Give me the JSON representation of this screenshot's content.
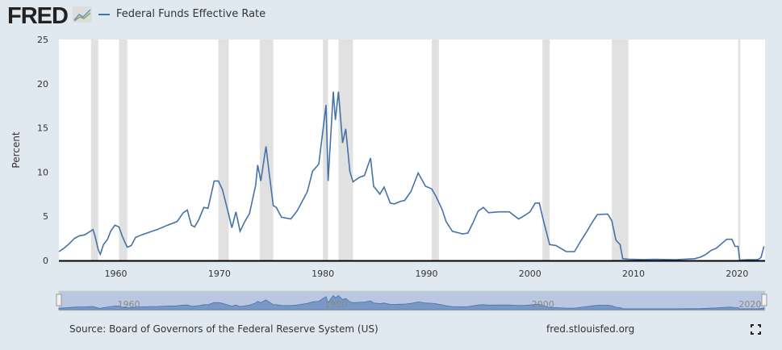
{
  "header": {
    "logo": "FRED",
    "legend_label": "Federal Funds Effective Rate"
  },
  "footer": {
    "source": "Source: Board of Governors of the Federal Reserve System (US)",
    "site": "fred.stlouisfed.org"
  },
  "colors": {
    "series": "#4572a7",
    "recession": "#e1e1e1",
    "background": "#e1e9f0"
  },
  "chart_data": {
    "type": "line",
    "title": "",
    "xlabel": "",
    "ylabel": "Percent",
    "xlim": [
      1954.5,
      2022.7
    ],
    "ylim": [
      0,
      25
    ],
    "yticks": [
      0,
      5,
      10,
      15,
      20,
      25
    ],
    "xticks": [
      "1960",
      "1970",
      "1980",
      "1990",
      "2000",
      "2010",
      "2020"
    ],
    "navigator_ticks": [
      "1960",
      "1980",
      "2000",
      "2020"
    ],
    "grid": false,
    "legend": "top-left",
    "recessions": [
      [
        1957.6,
        1958.3
      ],
      [
        1960.3,
        1961.1
      ],
      [
        1969.9,
        1970.9
      ],
      [
        1973.9,
        1975.2
      ],
      [
        1980.0,
        1980.5
      ],
      [
        1981.5,
        1982.9
      ],
      [
        1990.5,
        1991.2
      ],
      [
        2001.2,
        2001.9
      ],
      [
        2007.9,
        2009.5
      ],
      [
        2020.1,
        2020.3
      ]
    ],
    "series": [
      {
        "name": "Federal Funds Effective Rate",
        "points": [
          [
            1954.5,
            1.0
          ],
          [
            1955,
            1.4
          ],
          [
            1955.5,
            1.9
          ],
          [
            1956,
            2.5
          ],
          [
            1956.5,
            2.8
          ],
          [
            1957,
            2.9
          ],
          [
            1957.8,
            3.5
          ],
          [
            1958.0,
            2.7
          ],
          [
            1958.3,
            1.2
          ],
          [
            1958.5,
            0.7
          ],
          [
            1958.8,
            1.8
          ],
          [
            1959.2,
            2.4
          ],
          [
            1959.5,
            3.3
          ],
          [
            1959.9,
            4.0
          ],
          [
            1960.3,
            3.8
          ],
          [
            1960.6,
            2.8
          ],
          [
            1960.9,
            2.0
          ],
          [
            1961.1,
            1.5
          ],
          [
            1961.5,
            1.7
          ],
          [
            1961.9,
            2.6
          ],
          [
            1962.5,
            2.9
          ],
          [
            1963.5,
            3.3
          ],
          [
            1964,
            3.5
          ],
          [
            1965,
            4.0
          ],
          [
            1965.9,
            4.4
          ],
          [
            1966.5,
            5.4
          ],
          [
            1966.9,
            5.7
          ],
          [
            1967.3,
            4.0
          ],
          [
            1967.6,
            3.8
          ],
          [
            1968,
            4.6
          ],
          [
            1968.5,
            6.0
          ],
          [
            1968.9,
            5.9
          ],
          [
            1969.5,
            9.0
          ],
          [
            1969.9,
            9.0
          ],
          [
            1970.3,
            8.0
          ],
          [
            1970.9,
            5.2
          ],
          [
            1971.2,
            3.7
          ],
          [
            1971.6,
            5.5
          ],
          [
            1972.0,
            3.3
          ],
          [
            1972.5,
            4.5
          ],
          [
            1972.9,
            5.3
          ],
          [
            1973.5,
            8.5
          ],
          [
            1973.7,
            10.8
          ],
          [
            1974.0,
            9.0
          ],
          [
            1974.5,
            12.9
          ],
          [
            1974.8,
            10.0
          ],
          [
            1975.2,
            6.2
          ],
          [
            1975.5,
            6.0
          ],
          [
            1976,
            4.9
          ],
          [
            1976.9,
            4.7
          ],
          [
            1977.5,
            5.6
          ],
          [
            1978.0,
            6.7
          ],
          [
            1978.5,
            7.8
          ],
          [
            1979.0,
            10.1
          ],
          [
            1979.6,
            10.9
          ],
          [
            1979.9,
            13.8
          ],
          [
            1980.3,
            17.6
          ],
          [
            1980.5,
            9.0
          ],
          [
            1980.8,
            15.0
          ],
          [
            1981.0,
            19.1
          ],
          [
            1981.2,
            15.9
          ],
          [
            1981.5,
            19.1
          ],
          [
            1981.9,
            13.3
          ],
          [
            1982.2,
            14.9
          ],
          [
            1982.6,
            10.1
          ],
          [
            1982.9,
            8.9
          ],
          [
            1983.5,
            9.4
          ],
          [
            1984.0,
            9.6
          ],
          [
            1984.6,
            11.6
          ],
          [
            1984.9,
            8.4
          ],
          [
            1985.5,
            7.5
          ],
          [
            1985.9,
            8.3
          ],
          [
            1986.5,
            6.5
          ],
          [
            1986.9,
            6.4
          ],
          [
            1987.5,
            6.7
          ],
          [
            1987.9,
            6.8
          ],
          [
            1988.5,
            7.8
          ],
          [
            1989.2,
            9.9
          ],
          [
            1989.9,
            8.4
          ],
          [
            1990.5,
            8.1
          ],
          [
            1990.9,
            7.3
          ],
          [
            1991.5,
            5.8
          ],
          [
            1991.9,
            4.4
          ],
          [
            1992.5,
            3.3
          ],
          [
            1993.5,
            3.0
          ],
          [
            1994.0,
            3.1
          ],
          [
            1994.5,
            4.3
          ],
          [
            1995.0,
            5.6
          ],
          [
            1995.5,
            6.0
          ],
          [
            1996,
            5.4
          ],
          [
            1997,
            5.5
          ],
          [
            1998,
            5.5
          ],
          [
            1998.9,
            4.7
          ],
          [
            1999.5,
            5.1
          ],
          [
            2000.0,
            5.5
          ],
          [
            2000.5,
            6.5
          ],
          [
            2000.9,
            6.5
          ],
          [
            2001.3,
            4.5
          ],
          [
            2001.9,
            1.8
          ],
          [
            2002.5,
            1.7
          ],
          [
            2003.5,
            1.0
          ],
          [
            2004.3,
            1.0
          ],
          [
            2004.9,
            2.2
          ],
          [
            2005.5,
            3.3
          ],
          [
            2006.0,
            4.3
          ],
          [
            2006.5,
            5.2
          ],
          [
            2007.5,
            5.25
          ],
          [
            2007.9,
            4.5
          ],
          [
            2008.3,
            2.3
          ],
          [
            2008.7,
            1.8
          ],
          [
            2008.95,
            0.2
          ],
          [
            2009.5,
            0.15
          ],
          [
            2011,
            0.1
          ],
          [
            2012,
            0.14
          ],
          [
            2014,
            0.09
          ],
          [
            2015.9,
            0.2
          ],
          [
            2016.5,
            0.4
          ],
          [
            2017,
            0.7
          ],
          [
            2017.5,
            1.15
          ],
          [
            2018,
            1.4
          ],
          [
            2018.5,
            1.9
          ],
          [
            2019.0,
            2.4
          ],
          [
            2019.5,
            2.4
          ],
          [
            2019.8,
            1.6
          ],
          [
            2020.1,
            1.6
          ],
          [
            2020.25,
            0.05
          ],
          [
            2021,
            0.09
          ],
          [
            2022.0,
            0.08
          ],
          [
            2022.3,
            0.33
          ],
          [
            2022.6,
            1.6
          ]
        ]
      }
    ]
  }
}
